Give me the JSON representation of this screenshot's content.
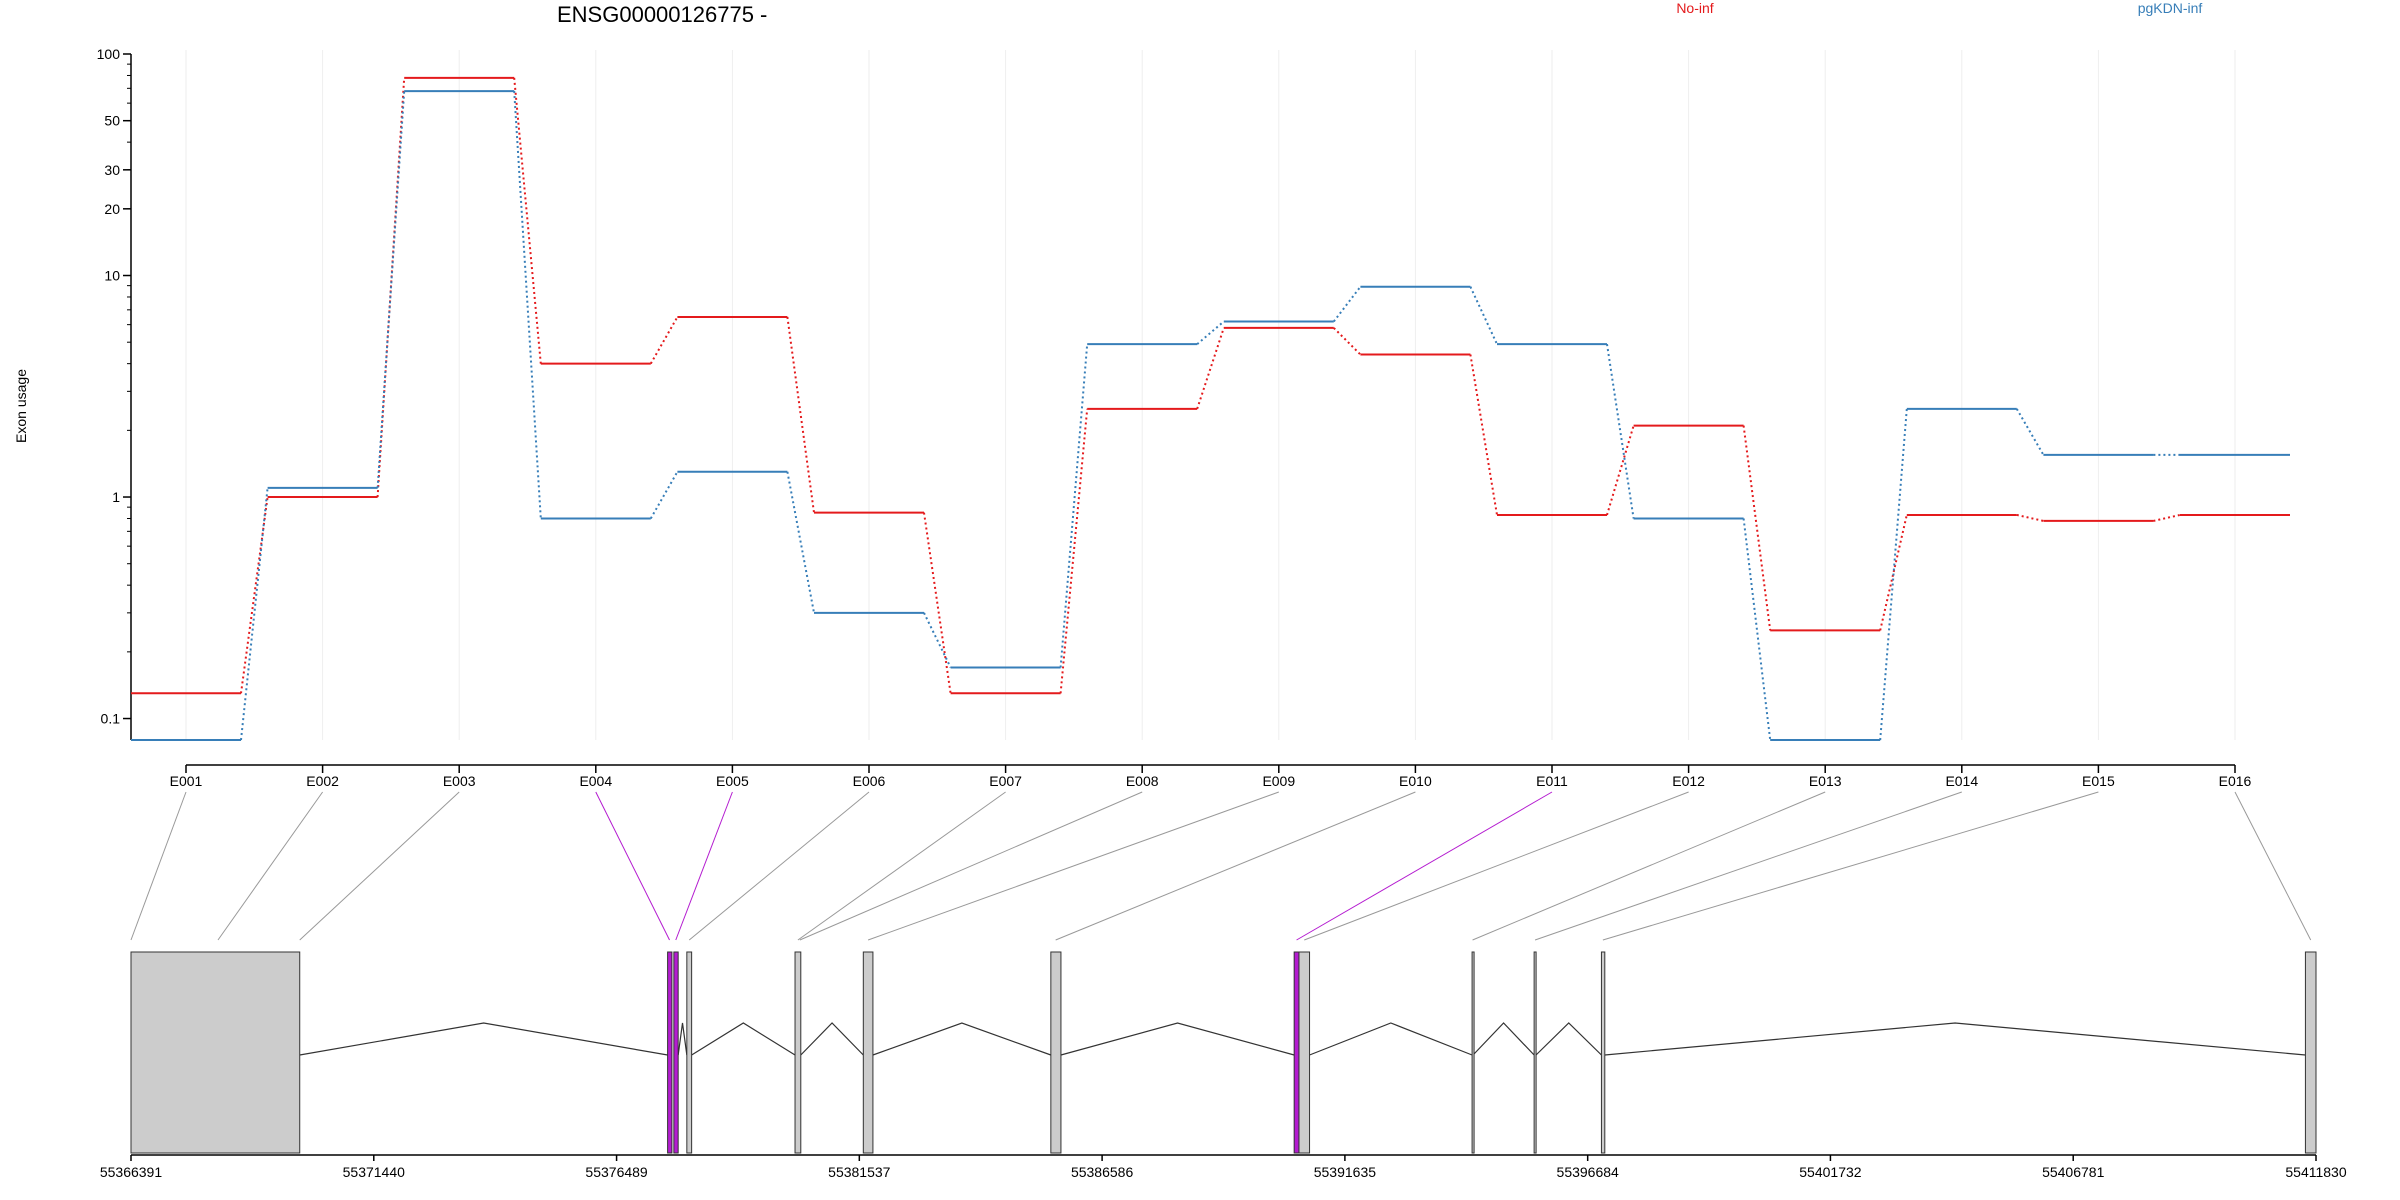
{
  "chart_data": {
    "type": "line",
    "title": "ENSG00000126775 -",
    "ylabel": "Exon usage",
    "xlabel": "",
    "y_scale": "log",
    "ylim": [
      0.08,
      100
    ],
    "y_ticks": [
      {
        "v": 0.1,
        "label": "0.1"
      },
      {
        "v": 1,
        "label": "1"
      },
      {
        "v": 10,
        "label": "10"
      },
      {
        "v": 20,
        "label": "20"
      },
      {
        "v": 30,
        "label": "30"
      },
      {
        "v": 50,
        "label": "50"
      },
      {
        "v": 100,
        "label": "100"
      }
    ],
    "categories": [
      "E001",
      "E002",
      "E003",
      "E004",
      "E005",
      "E006",
      "E007",
      "E008",
      "E009",
      "E010",
      "E011",
      "E012",
      "E013",
      "E014",
      "E015",
      "E016"
    ],
    "series": [
      {
        "name": "No-inf",
        "color": "#e41a1c",
        "values": [
          0.13,
          1.0,
          78.0,
          4.0,
          6.5,
          0.85,
          0.13,
          2.5,
          5.8,
          4.4,
          0.83,
          2.1,
          0.25,
          0.83,
          0.78,
          0.83
        ]
      },
      {
        "name": "pgKDN-inf",
        "color": "#377eb8",
        "values": [
          0.08,
          1.1,
          68.0,
          0.8,
          1.3,
          0.3,
          0.17,
          4.9,
          6.2,
          8.9,
          4.9,
          0.8,
          0.08,
          2.5,
          1.55,
          1.55
        ]
      }
    ],
    "genomic_ticks": [
      "55366391",
      "55371440",
      "55376489",
      "55381537",
      "55386586",
      "55391635",
      "55396684",
      "55401732",
      "55406781",
      "55411830"
    ],
    "genomic_range": [
      55366391,
      55411830
    ],
    "gene_model": {
      "exon_fill": "#cccccc",
      "highlight_color": "#b41cd0",
      "exons": [
        {
          "start": 55366391,
          "end": 55369900,
          "highlight": false
        },
        {
          "start": 55377550,
          "end": 55377640,
          "highlight": true
        },
        {
          "start": 55377680,
          "end": 55377770,
          "highlight": true
        },
        {
          "start": 55377950,
          "end": 55378050,
          "highlight": false
        },
        {
          "start": 55380200,
          "end": 55380320,
          "highlight": false
        },
        {
          "start": 55381620,
          "end": 55381820,
          "highlight": false
        },
        {
          "start": 55385520,
          "end": 55385730,
          "highlight": false
        },
        {
          "start": 55390580,
          "end": 55390680,
          "highlight": true
        },
        {
          "start": 55390680,
          "end": 55390900,
          "highlight": false
        },
        {
          "start": 55394280,
          "end": 55394300,
          "highlight": false
        },
        {
          "start": 55395570,
          "end": 55395610,
          "highlight": false
        },
        {
          "start": 55396970,
          "end": 55397040,
          "highlight": false
        },
        {
          "start": 55411610,
          "end": 55411830,
          "highlight": false
        }
      ],
      "exon_links": [
        {
          "exon": "E001",
          "target": 55366391,
          "highlight": false
        },
        {
          "exon": "E002",
          "target": 55368200,
          "highlight": false
        },
        {
          "exon": "E003",
          "target": 55369900,
          "highlight": false
        },
        {
          "exon": "E004",
          "target": 55377590,
          "highlight": true
        },
        {
          "exon": "E005",
          "target": 55377720,
          "highlight": true
        },
        {
          "exon": "E006",
          "target": 55378000,
          "highlight": false
        },
        {
          "exon": "E007",
          "target": 55380260,
          "highlight": false
        },
        {
          "exon": "E008",
          "target": 55380300,
          "highlight": false
        },
        {
          "exon": "E009",
          "target": 55381720,
          "highlight": false
        },
        {
          "exon": "E010",
          "target": 55385620,
          "highlight": false
        },
        {
          "exon": "E011",
          "target": 55390630,
          "highlight": true
        },
        {
          "exon": "E012",
          "target": 55390790,
          "highlight": false
        },
        {
          "exon": "E013",
          "target": 55394290,
          "highlight": false
        },
        {
          "exon": "E014",
          "target": 55395590,
          "highlight": false
        },
        {
          "exon": "E015",
          "target": 55397000,
          "highlight": false
        },
        {
          "exon": "E016",
          "target": 55411720,
          "highlight": false
        }
      ]
    },
    "legend_placement": "top",
    "grid": true
  }
}
